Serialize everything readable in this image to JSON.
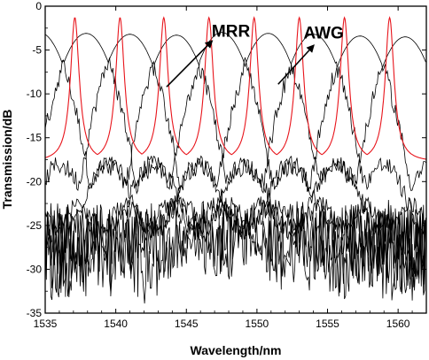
{
  "chart_data": {
    "type": "line",
    "title": "",
    "xlabel": "Wavelength/nm",
    "ylabel": "Transmission/dB",
    "xlim": [
      1535,
      1562
    ],
    "ylim": [
      -35,
      0
    ],
    "xticks": [
      1535,
      1540,
      1545,
      1550,
      1555,
      1560
    ],
    "yticks": [
      0,
      -5,
      -10,
      -15,
      -20,
      -25,
      -30,
      -35
    ],
    "grid": false,
    "legend": "none",
    "annotations": [
      {
        "text": "MRR",
        "x": 1546.8,
        "y": -3.5,
        "arrow_from": [
          1543.6,
          -9.2
        ],
        "arrow_to": [
          1546.8,
          -4.0
        ]
      },
      {
        "text": "AWG",
        "x": 1553.3,
        "y": -3.7,
        "arrow_from": [
          1551.5,
          -8.9
        ],
        "arrow_to": [
          1554.0,
          -4.5
        ]
      }
    ],
    "series": [
      {
        "color": "#e8141b",
        "kind": "periodic-resonance",
        "peaks": [
          1537.1,
          1540.3,
          1543.4,
          1546.6,
          1549.8,
          1553.0,
          1556.2,
          1559.4
        ],
        "peak_value": -1.3,
        "floor_value": -17.8,
        "x_range": [
          1535,
          1562
        ]
      },
      {
        "color": "#000000",
        "kind": "awg-passband",
        "channels": [
          {
            "center": 1534.6,
            "peak": -3.0
          },
          {
            "center": 1537.9,
            "peak": -3.1
          },
          {
            "center": 1541.0,
            "peak": -3.2
          },
          {
            "center": 1544.3,
            "peak": -3.3
          },
          {
            "center": 1547.5,
            "peak": -3.0
          },
          {
            "center": 1550.8,
            "peak": -3.1
          },
          {
            "center": 1554.0,
            "peak": -3.2
          },
          {
            "center": 1557.3,
            "peak": -3.4
          },
          {
            "center": 1560.5,
            "peak": -3.5
          }
        ],
        "floor_band": [
          -33,
          -23
        ],
        "x_range": [
          1535,
          1562
        ]
      }
    ]
  }
}
